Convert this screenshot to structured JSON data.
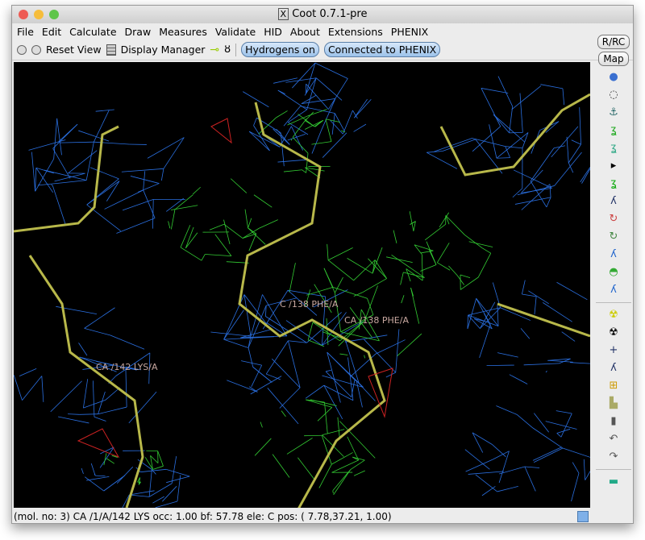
{
  "window": {
    "title": "Coot 0.7.1-pre"
  },
  "menu": [
    "File",
    "Edit",
    "Calculate",
    "Draw",
    "Measures",
    "Validate",
    "HID",
    "About",
    "Extensions",
    "PHENIX"
  ],
  "toolbar": {
    "reset_view": "Reset View",
    "display_manager": "Display Manager",
    "hydrogens": "Hydrogens on",
    "phenix": "Connected to PHENIX"
  },
  "side": {
    "rrc": "R/RC",
    "map": "Map",
    "icons": [
      "rotate-translate-icon",
      "refine-zone-icon",
      "regularize-icon",
      "rigid-body-icon",
      "real-space-refine-icon",
      "expand-arrow-icon",
      "rotamer-icon",
      "torsion-icon",
      "flip-peptide-icon",
      "side-chain-180-icon",
      "edit-chi-icon",
      "side-chain-icon",
      "backbone-torsion-icon",
      "radioactive-small-icon",
      "radioactive-icon",
      "add-atom-icon",
      "add-terminal-icon",
      "place-water-icon",
      "paste-icon",
      "delete-icon",
      "undo-icon",
      "redo-icon",
      "flag-icon"
    ]
  },
  "canvas": {
    "labels": [
      "C /138 PHE/A",
      "CA /138 PHE/A",
      "CA /142 LYS/A"
    ]
  },
  "status": "(mol. no: 3)  CA /1/A/142 LYS occ:  1.00 bf: 57.78 ele:  C pos: ( 7.78,37.21, 1.00)"
}
